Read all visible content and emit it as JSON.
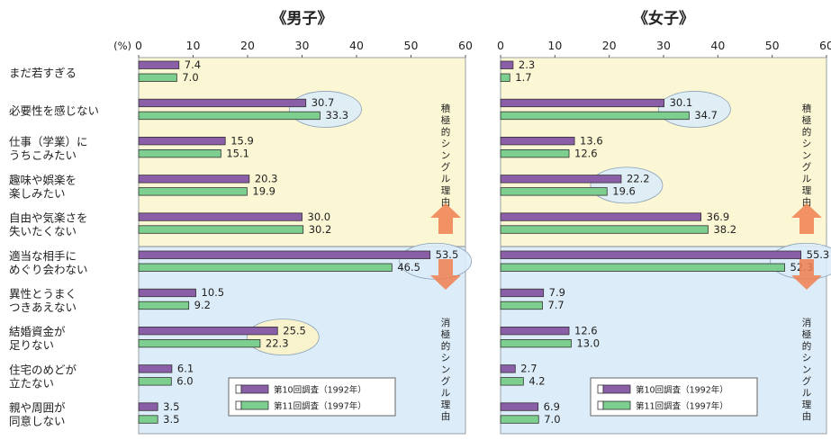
{
  "chart_data": {
    "type": "bar",
    "orientation": "horizontal",
    "axis_unit_label": "(%)",
    "xlim": [
      0,
      60
    ],
    "xticks": [
      0,
      10,
      20,
      30,
      40,
      50,
      60
    ],
    "categories": [
      [
        "まだ若すぎる"
      ],
      [
        "必要性を感じない"
      ],
      [
        "仕事（学業）に",
        "うちこみたい"
      ],
      [
        "趣味や娯楽を",
        "楽しみたい"
      ],
      [
        "自由や気楽さを",
        "失いたくない"
      ],
      [
        "適当な相手に",
        "めぐり会わない"
      ],
      [
        "異性とうまく",
        "つきあえない"
      ],
      [
        "結婚資金が",
        "足りない"
      ],
      [
        "住宅のめどが",
        "立たない"
      ],
      [
        "親や周囲が",
        "同意しない"
      ]
    ],
    "series_names": [
      "第10回調査（1992年）",
      "第11回調査（1997年）"
    ],
    "series_colors": [
      "#8b5ea8",
      "#7ccf8e"
    ],
    "positive_group_label": "積極的シングル理由",
    "negative_group_label": "消極的シングル理由",
    "panels": [
      {
        "title": "《男子》",
        "series": [
          {
            "values": [
              7.4,
              30.7,
              15.9,
              20.3,
              30.0,
              53.5,
              10.5,
              25.5,
              6.1,
              3.5
            ]
          },
          {
            "values": [
              7.0,
              33.3,
              15.1,
              19.9,
              30.2,
              46.5,
              9.2,
              22.3,
              6.0,
              3.5
            ]
          }
        ],
        "value_labels": [
          [
            "7.4",
            "30.7",
            "15.9",
            "20.3",
            "30.0",
            "53.5",
            "10.5",
            "25.5",
            "6.1",
            "3.5"
          ],
          [
            "7.0",
            "33.3",
            "15.1",
            "19.9",
            "30.2",
            "46.5",
            "9.2",
            "22.3",
            "6.0",
            "3.5"
          ]
        ],
        "highlighted_categories": [
          "必要性を感じない",
          "適当な相手に めぐり会わない",
          "結婚資金が 足りない"
        ]
      },
      {
        "title": "《女子》",
        "series": [
          {
            "values": [
              2.3,
              30.1,
              13.6,
              22.2,
              36.9,
              55.3,
              7.9,
              12.6,
              2.7,
              6.9
            ]
          },
          {
            "values": [
              1.7,
              34.7,
              12.6,
              19.6,
              38.2,
              52.3,
              7.7,
              13.0,
              4.2,
              7.0
            ]
          }
        ],
        "value_labels": [
          [
            "2.3",
            "30.1",
            "13.6",
            "22.2",
            "36.9",
            "55.3",
            "7.9",
            "12.6",
            "2.7",
            "6.9"
          ],
          [
            "1.7",
            "34.7",
            "12.6",
            "19.6",
            "38.2",
            "52.3",
            "7.7",
            "13.0",
            "4.2",
            "7.0"
          ]
        ],
        "highlighted_categories": [
          "必要性を感じない",
          "趣味や娯楽を 楽しみたい",
          "適当な相手に めぐり会わない"
        ]
      }
    ],
    "positive_bg": "#fbf6d3",
    "negative_bg": "#dcecf8",
    "highlight_fill": "#dcecf8",
    "highlight_fill_alt": "#fbf3c8",
    "arrow_color": "#f08050"
  }
}
